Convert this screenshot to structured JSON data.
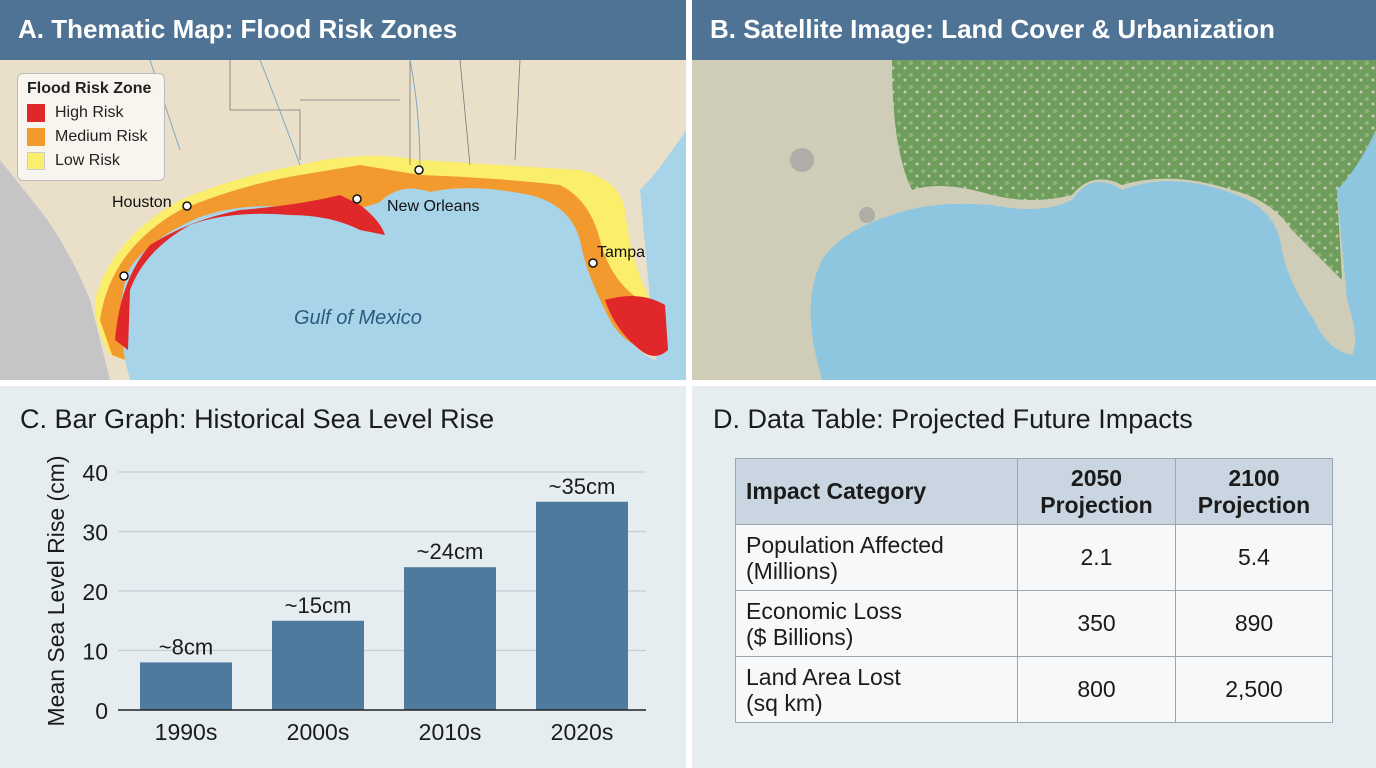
{
  "panel_a": {
    "title": "A. Thematic Map: Flood Risk Zones",
    "legend": {
      "title": "Flood Risk Zone",
      "items": [
        {
          "label": "High Risk",
          "color": "#e0282a"
        },
        {
          "label": "Medium Risk",
          "color": "#f29a2e"
        },
        {
          "label": "Low Risk",
          "color": "#fbee6a"
        }
      ]
    },
    "cities": [
      "Houston",
      "New Orleans",
      "Tampa"
    ],
    "water_label": "Gulf of Mexico"
  },
  "panel_b": {
    "title": "B. Satellite Image: Land Cover & Urbanization"
  },
  "panel_c": {
    "title": "C. Bar Graph: Historical Sea Level Rise"
  },
  "chart_data": {
    "type": "bar",
    "title": "C. Bar Graph: Historical Sea Level Rise",
    "categories": [
      "1990s",
      "2000s",
      "2010s",
      "2020s"
    ],
    "values": [
      8,
      15,
      24,
      35
    ],
    "data_labels": [
      "~8cm",
      "~15cm",
      "~24cm",
      "~35cm"
    ],
    "xlabel": "",
    "ylabel": "Mean Sea Level Rise (cm)",
    "ylim": [
      0,
      40
    ],
    "yticks": [
      0,
      10,
      20,
      30,
      40
    ],
    "grid": true,
    "bar_color": "#4e7a9e"
  },
  "panel_d": {
    "title": "D. Data Table: Projected Future Impacts",
    "headers": [
      "Impact Category",
      "2050 Projection",
      "2100 Projection"
    ],
    "rows": [
      {
        "category": [
          "Population Affected",
          "(Millions)"
        ],
        "v2050": "2.1",
        "v2100": "5.4"
      },
      {
        "category": [
          "Economic Loss",
          "($ Billions)"
        ],
        "v2050": "350",
        "v2100": "890"
      },
      {
        "category": [
          "Land Area Lost",
          "(sq km)"
        ],
        "v2050": "800",
        "v2100": "2,500"
      }
    ]
  }
}
